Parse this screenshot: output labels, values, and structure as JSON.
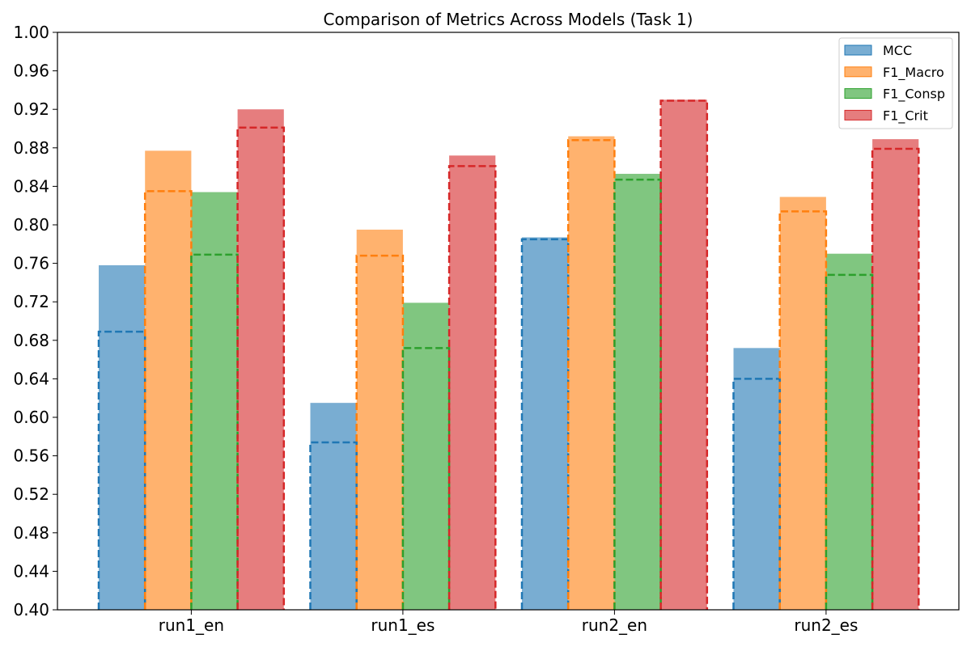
{
  "chart_data": {
    "type": "bar",
    "title": "Comparison of Metrics Across Models (Task 1)",
    "xlabel": "",
    "ylabel": "",
    "categories": [
      "run1_en",
      "run1_es",
      "run2_en",
      "run2_es"
    ],
    "ylim": [
      0.4,
      1.0
    ],
    "yticks": [
      "0.40",
      "0.44",
      "0.48",
      "0.52",
      "0.56",
      "0.60",
      "0.64",
      "0.68",
      "0.72",
      "0.76",
      "0.80",
      "0.84",
      "0.88",
      "0.92",
      "0.96",
      "1.00"
    ],
    "grid": false,
    "legend_position": "top-right",
    "series": [
      {
        "name": "MCC",
        "color": "#1f77b4",
        "values": [
          0.758,
          0.615,
          0.787,
          0.672
        ],
        "dashed_values": [
          0.689,
          0.574,
          0.785,
          0.64
        ]
      },
      {
        "name": "F1_Macro",
        "color": "#ff7f0e",
        "values": [
          0.877,
          0.795,
          0.892,
          0.829
        ],
        "dashed_values": [
          0.835,
          0.768,
          0.888,
          0.814
        ]
      },
      {
        "name": "F1_Consp",
        "color": "#2ca02c",
        "values": [
          0.834,
          0.719,
          0.853,
          0.77
        ],
        "dashed_values": [
          0.769,
          0.672,
          0.847,
          0.748
        ]
      },
      {
        "name": "F1_Crit",
        "color": "#d62728",
        "values": [
          0.92,
          0.872,
          0.93,
          0.889
        ],
        "dashed_values": [
          0.901,
          0.861,
          0.929,
          0.879
        ]
      }
    ]
  }
}
